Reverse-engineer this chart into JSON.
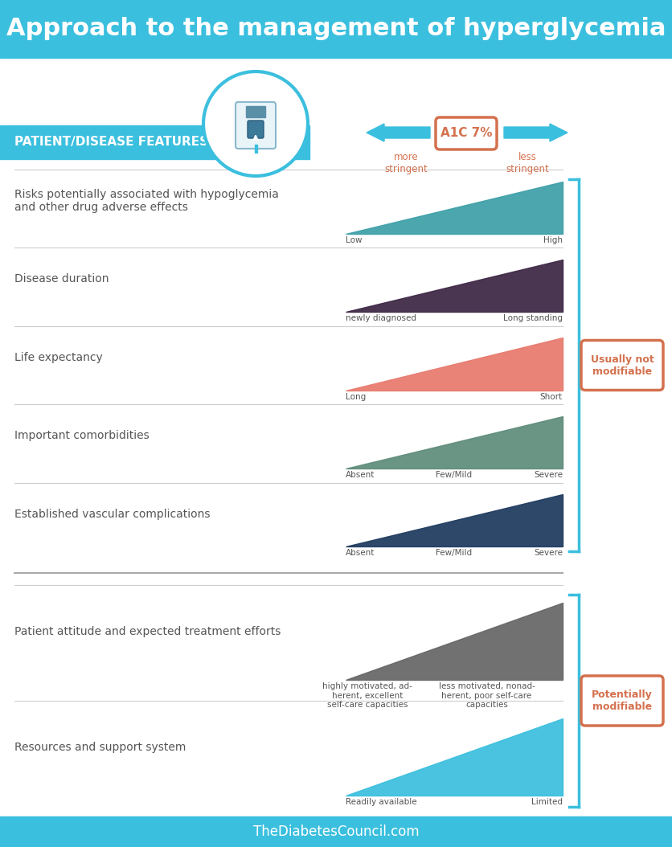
{
  "title": "Approach to the management of hyperglycemia",
  "title_bg": "#3bbfde",
  "title_color": "#ffffff",
  "title_fontsize": 22,
  "header_bg": "#3bbfde",
  "header_text": "PATIENT/DISEASE FEATURES",
  "header_text_color": "#ffffff",
  "header_fontsize": 11,
  "a1c_label": "A1C 7%",
  "a1c_color": "#d4714e",
  "more_stringent": "more\nstringent",
  "less_stringent": "less\nstringent",
  "arrow_color": "#3bbfde",
  "footer_text": "TheDiabetesCouncil.com",
  "footer_bg": "#3bbfde",
  "footer_color": "#ffffff",
  "usually_not_label": "Usually not\nmodifiable",
  "potentially_label": "Potentially\nmodifiable",
  "bracket_color": "#3bbfde",
  "label_color": "#d4714e",
  "label_bg": "#ffffff",
  "rows": [
    {
      "label": "Risks potentially associated with hypoglycemia\nand other drug adverse effects",
      "triangle_color": "#3e9fa8",
      "x_labels": [
        "Low",
        "High"
      ],
      "x_label_positions": [
        0.0,
        1.0
      ],
      "group": 1
    },
    {
      "label": "Disease duration",
      "triangle_color": "#3d2645",
      "x_labels": [
        "newly diagnosed",
        "Long standing"
      ],
      "x_label_positions": [
        0.0,
        1.0
      ],
      "group": 1
    },
    {
      "label": "Life expectancy",
      "triangle_color": "#e87a6e",
      "x_labels": [
        "Long",
        "Short"
      ],
      "x_label_positions": [
        0.0,
        1.0
      ],
      "group": 1
    },
    {
      "label": "Important comorbidities",
      "triangle_color": "#5f8c7a",
      "x_labels": [
        "Absent",
        "Few/Mild",
        "Severe"
      ],
      "x_label_positions": [
        0.0,
        0.5,
        1.0
      ],
      "group": 1
    },
    {
      "label": "Established vascular complications",
      "triangle_color": "#1e3a5f",
      "x_labels": [
        "Absent",
        "Few/Mild",
        "Severe"
      ],
      "x_label_positions": [
        0.0,
        0.5,
        1.0
      ],
      "group": 1
    },
    {
      "label": "Patient attitude and expected treatment efforts",
      "triangle_color": "#666666",
      "x_labels": [
        "highly motivated, ad-\nherent, excellent\nself-care capacities",
        "less motivated, nonad-\nherent, poor self-care\ncapacities"
      ],
      "x_label_positions": [
        0.1,
        0.65
      ],
      "group": 2
    },
    {
      "label": "Resources and support system",
      "triangle_color": "#3bbfde",
      "x_labels": [
        "Readily available",
        "Limited"
      ],
      "x_label_positions": [
        0.0,
        1.0
      ],
      "group": 2
    }
  ],
  "bg_color": "#ffffff",
  "text_color": "#555555",
  "row_label_fontsize": 10,
  "separator_color": "#cccccc"
}
